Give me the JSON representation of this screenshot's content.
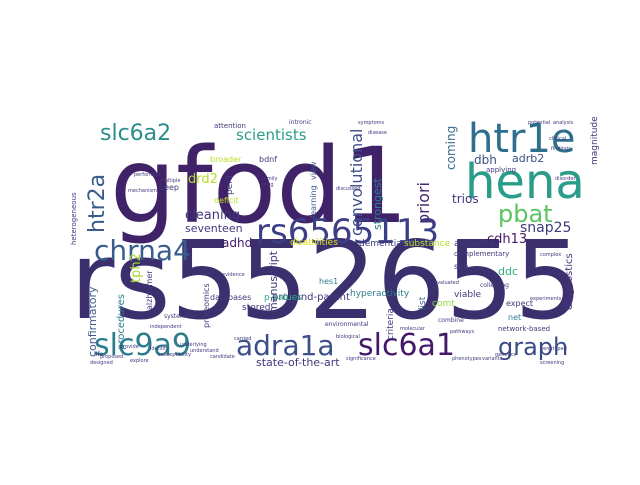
{
  "wordcloud": {
    "words": [
      {
        "text": "rs552655",
        "color": "#3b2f6e"
      },
      {
        "text": "gfod1",
        "color": "#3f2268"
      },
      {
        "text": "hena",
        "color": "#2a9d8a"
      },
      {
        "text": "htr1e",
        "color": "#2e6f8e"
      },
      {
        "text": "rs6565113",
        "color": "#3c3f85"
      },
      {
        "text": "slc9a9",
        "color": "#2c7c8c"
      },
      {
        "text": "adra1a",
        "color": "#3d4f8a"
      },
      {
        "text": "slc6a1",
        "color": "#44196b"
      },
      {
        "text": "chrna4",
        "color": "#3a5c8c"
      },
      {
        "text": "graph",
        "color": "#3a4a86"
      },
      {
        "text": "pbat",
        "color": "#5cc463"
      },
      {
        "text": "slc6a2",
        "color": "#2a8e8a"
      },
      {
        "text": "htr2a",
        "color": "#3a5c8c"
      },
      {
        "text": "convolutional",
        "color": "#3f4f88"
      },
      {
        "text": "priori",
        "color": "#45296f"
      },
      {
        "text": "scientists",
        "color": "#2a9d8a"
      },
      {
        "text": "cleaning",
        "color": "#3f3a7d"
      },
      {
        "text": "seventeen",
        "color": "#3f3a7d"
      },
      {
        "text": "drd2",
        "color": "#b8de29"
      },
      {
        "text": "tph2",
        "color": "#a8db34"
      },
      {
        "text": "adhd",
        "color": "#44196b"
      },
      {
        "text": "snap25",
        "color": "#3f3a7d"
      },
      {
        "text": "cdh13",
        "color": "#44196b"
      },
      {
        "text": "adrb2",
        "color": "#3b4f86"
      },
      {
        "text": "dbh",
        "color": "#3b4f86"
      },
      {
        "text": "trios",
        "color": "#3f3a7d"
      },
      {
        "text": "coming",
        "color": "#3a6c8c"
      },
      {
        "text": "strongest",
        "color": "#2e7e8e"
      },
      {
        "text": "ddc",
        "color": "#2bb07f"
      },
      {
        "text": "magnitude",
        "color": "#3f3a7d"
      },
      {
        "text": "diagnostics",
        "color": "#46327e"
      },
      {
        "text": "manuscript",
        "color": "#3f3a7d"
      },
      {
        "text": "state-of-the-art",
        "color": "#3f3a7d"
      },
      {
        "text": "proband-parent",
        "color": "#3f3a7d"
      },
      {
        "text": "confirmatory",
        "color": "#3a5c8c"
      },
      {
        "text": "procedures",
        "color": "#2e7e8e"
      },
      {
        "text": "proteomics",
        "color": "#3f3a7d"
      },
      {
        "text": "alzheimer",
        "color": "#3f3a7d"
      },
      {
        "text": "learning",
        "color": "#3a5c8c"
      },
      {
        "text": "view",
        "color": "#3a5c8c"
      },
      {
        "text": "disabilities",
        "color": "#e4e419"
      },
      {
        "text": "substance",
        "color": "#b8de29"
      },
      {
        "text": "dementia",
        "color": "#3f3a7d"
      },
      {
        "text": "algorithm",
        "color": "#3f3a7d"
      },
      {
        "text": "criteria",
        "color": "#3f3a7d"
      },
      {
        "text": "hes1",
        "color": "#2e7e8e"
      },
      {
        "text": "hyperactivity",
        "color": "#2e7e8e"
      },
      {
        "text": "viable",
        "color": "#3f3a7d"
      },
      {
        "text": "comt",
        "color": "#95d840"
      },
      {
        "text": "expect",
        "color": "#3f3a7d"
      },
      {
        "text": "complementary",
        "color": "#3f3a7d"
      },
      {
        "text": "sun",
        "color": "#3f3a7d"
      },
      {
        "text": "list",
        "color": "#3a6c8c"
      },
      {
        "text": "p-values",
        "color": "#2bb07f"
      },
      {
        "text": "stored",
        "color": "#3f3a7d"
      },
      {
        "text": "databases",
        "color": "#3f3a7d"
      },
      {
        "text": "network-based",
        "color": "#3f3a7d"
      },
      {
        "text": "net",
        "color": "#2e7e8e"
      },
      {
        "text": "deep",
        "color": "#3f3a7d"
      },
      {
        "text": "deficit",
        "color": "#b8de29"
      },
      {
        "text": "per1",
        "color": "#3f3a7d"
      },
      {
        "text": "bdnf",
        "color": "#3f3a7d"
      },
      {
        "text": "broader",
        "color": "#b8de29"
      },
      {
        "text": "attention",
        "color": "#3f3a7d"
      },
      {
        "text": "intronic",
        "color": "#3f3a7d"
      },
      {
        "text": "environmental",
        "color": "#3f3a7d"
      },
      {
        "text": "heterogeneous",
        "color": "#3f3a7d"
      },
      {
        "text": "applying",
        "color": "#3f3a7d"
      },
      {
        "text": "collecting",
        "color": "#3f3a7d"
      },
      {
        "text": "combine",
        "color": "#3f3a7d"
      },
      {
        "text": "life",
        "color": "#3f3a7d"
      },
      {
        "text": "systematic",
        "color": "#3f3a7d"
      },
      {
        "text": "symptoms",
        "color": "#3f3a7d"
      },
      {
        "text": "discussed",
        "color": "#3f3a7d"
      },
      {
        "text": "biological",
        "color": "#3f3a7d"
      },
      {
        "text": "genetics",
        "color": "#3f3a7d"
      },
      {
        "text": "pathways",
        "color": "#3f3a7d"
      },
      {
        "text": "genotyped",
        "color": "#3f3a7d"
      },
      {
        "text": "independent",
        "color": "#3f3a7d"
      },
      {
        "text": "susceptibility",
        "color": "#3f3a7d"
      },
      {
        "text": "candidate",
        "color": "#3f3a7d"
      },
      {
        "text": "significance",
        "color": "#3f3a7d"
      },
      {
        "text": "phenotypes",
        "color": "#3f3a7d"
      },
      {
        "text": "variants",
        "color": "#3f3a7d"
      },
      {
        "text": "multiple",
        "color": "#3f3a7d"
      },
      {
        "text": "family",
        "color": "#3f3a7d"
      },
      {
        "text": "disease",
        "color": "#3f3a7d"
      },
      {
        "text": "analysis",
        "color": "#3f3a7d"
      },
      {
        "text": "experiments",
        "color": "#3f3a7d"
      },
      {
        "text": "screening",
        "color": "#3f3a7d"
      },
      {
        "text": "clinical",
        "color": "#3f3a7d"
      },
      {
        "text": "findings",
        "color": "#3f3a7d"
      },
      {
        "text": "disorder",
        "color": "#3f3a7d"
      },
      {
        "text": "evaluated",
        "color": "#3f3a7d"
      },
      {
        "text": "proposed",
        "color": "#3f3a7d"
      },
      {
        "text": "performed",
        "color": "#3f3a7d"
      },
      {
        "text": "mechanisms",
        "color": "#3f3a7d"
      },
      {
        "text": "identify",
        "color": "#3f3a7d"
      },
      {
        "text": "explore",
        "color": "#3f3a7d"
      },
      {
        "text": "provide",
        "color": "#3f3a7d"
      },
      {
        "text": "understand",
        "color": "#3f3a7d"
      },
      {
        "text": "carried",
        "color": "#3f3a7d"
      },
      {
        "text": "molecular",
        "color": "#3f3a7d"
      },
      {
        "text": "complex",
        "color": "#3f3a7d"
      },
      {
        "text": "drug",
        "color": "#3f3a7d"
      },
      {
        "text": "potential",
        "color": "#3f3a7d"
      },
      {
        "text": "types",
        "color": "#3f3a7d"
      },
      {
        "text": "evidence",
        "color": "#3f3a7d"
      },
      {
        "text": "underlying",
        "color": "#3f3a7d"
      },
      {
        "text": "designed",
        "color": "#3f3a7d"
      }
    ]
  }
}
